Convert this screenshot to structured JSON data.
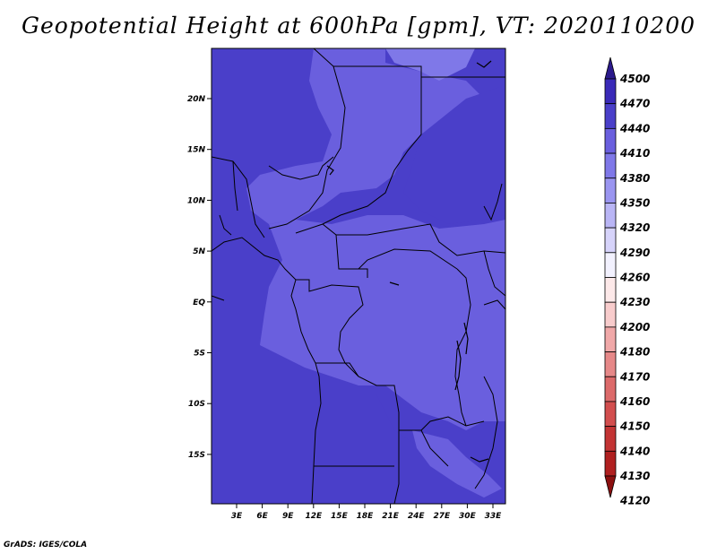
{
  "title": "Geopotential Height at 600hPa [gpm], VT: 2020110200",
  "credit": "GrADS: IGES/COLA",
  "map": {
    "y_tick_labels": [
      "20N",
      "15N",
      "10N",
      "5N",
      "EQ",
      "5S",
      "10S",
      "15S"
    ],
    "x_tick_labels": [
      "3E",
      "6E",
      "9E",
      "12E",
      "15E",
      "18E",
      "21E",
      "24E",
      "27E",
      "30E",
      "33E"
    ],
    "colors": {
      "level_4410": "#4a3fc9",
      "level_4380": "#6a5fde",
      "level_4350": "#7f78e8",
      "land_lines": "#000000"
    }
  },
  "colorbar": {
    "levels": [
      "4500",
      "4470",
      "4440",
      "4410",
      "4380",
      "4350",
      "4320",
      "4290",
      "4260",
      "4230",
      "4200",
      "4180",
      "4170",
      "4160",
      "4150",
      "4140",
      "4130",
      "4120"
    ],
    "colors": [
      "#2b1a8c",
      "#3a2ab8",
      "#4a3fc9",
      "#6a5fde",
      "#7f78e8",
      "#9a95f0",
      "#b9b5f5",
      "#d6d3fa",
      "#f2f1fe",
      "#fde9e9",
      "#f8cccc",
      "#f0a8a8",
      "#e68888",
      "#dc6a6a",
      "#d24e4e",
      "#c33434",
      "#b02020",
      "#8c1010"
    ]
  }
}
